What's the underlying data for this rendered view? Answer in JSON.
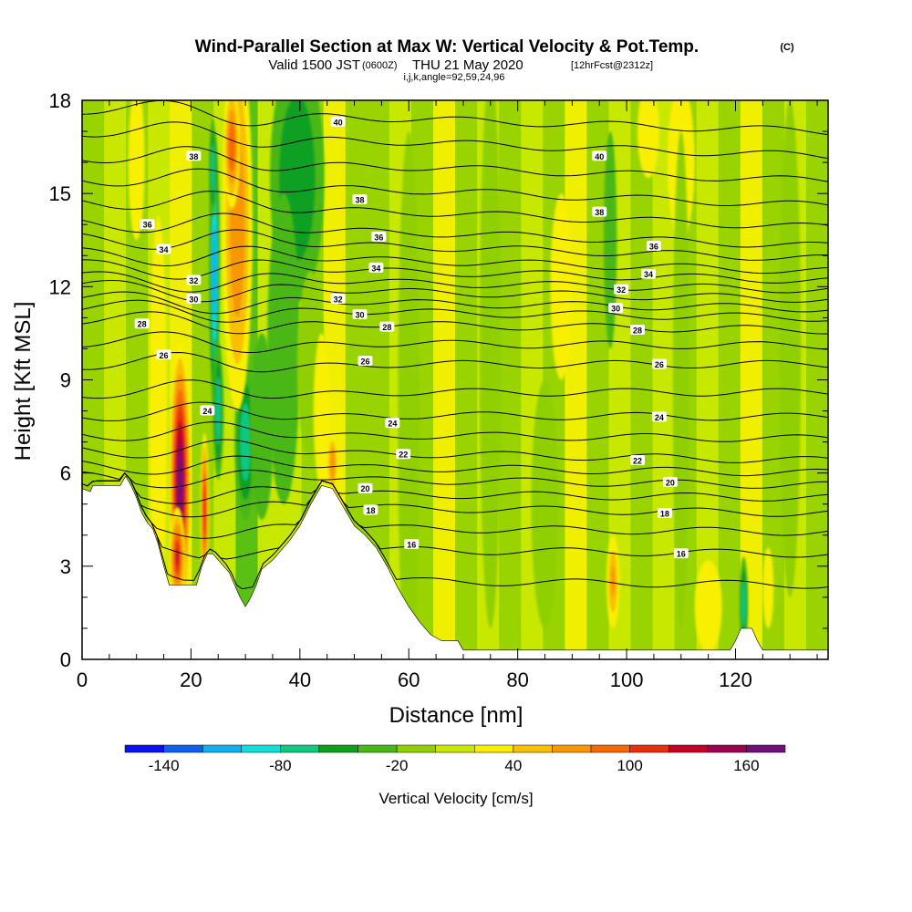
{
  "title": {
    "main": "Wind-Parallel Section at Max W: Vertical Velocity & Pot.Temp.",
    "copyright": "(C)",
    "valid_prefix": "Valid 1500 JST",
    "valid_utc": "(0600Z)",
    "valid_date": "THU 21 May 2020",
    "forecast": "[12hrFcst@2312z]",
    "indices": "i,j,k,angle=92,59,24,96"
  },
  "chart_data": {
    "type": "heatmap",
    "xlabel": "Distance [nm]",
    "ylabel": "Height [Kft MSL]",
    "xlim": [
      0,
      137
    ],
    "ylim": [
      0,
      18
    ],
    "x_ticks": [
      0,
      20,
      40,
      60,
      80,
      100,
      120
    ],
    "y_ticks": [
      0,
      3,
      6,
      9,
      12,
      15,
      18
    ],
    "colorbar": {
      "label": "Vertical Velocity [cm/s]",
      "tick_labels": [
        "-140",
        "-80",
        "-20",
        "40",
        "100",
        "160"
      ],
      "tick_values": [
        -140,
        -80,
        -20,
        40,
        100,
        160
      ],
      "bins": [
        -160,
        -140,
        -120,
        -100,
        -80,
        -60,
        -40,
        -20,
        0,
        20,
        40,
        60,
        80,
        100,
        120,
        140,
        160,
        180
      ],
      "colors": [
        "#0a10f0",
        "#1060f0",
        "#10b0f0",
        "#10e0d8",
        "#10c880",
        "#10a020",
        "#48b818",
        "#90d000",
        "#c8e800",
        "#f8f000",
        "#f8c000",
        "#f89800",
        "#f86800",
        "#e83010",
        "#c80028",
        "#a00050",
        "#701078"
      ]
    },
    "terrain_profile": [
      [
        0,
        5.5
      ],
      [
        1.5,
        5.4
      ],
      [
        2,
        5.6
      ],
      [
        7,
        5.6
      ],
      [
        8,
        5.9
      ],
      [
        9,
        5.6
      ],
      [
        10,
        5.2
      ],
      [
        11,
        4.7
      ],
      [
        12,
        4.4
      ],
      [
        13,
        4.2
      ],
      [
        14,
        3.7
      ],
      [
        15,
        3.0
      ],
      [
        16,
        2.4
      ],
      [
        18,
        2.4
      ],
      [
        19,
        2.4
      ],
      [
        21,
        2.4
      ],
      [
        22,
        3.0
      ],
      [
        23,
        3.4
      ],
      [
        24,
        3.4
      ],
      [
        26,
        3.0
      ],
      [
        27,
        2.8
      ],
      [
        28,
        2.4
      ],
      [
        29,
        2.0
      ],
      [
        30,
        1.7
      ],
      [
        31,
        2.0
      ],
      [
        32,
        2.4
      ],
      [
        33,
        2.9
      ],
      [
        35,
        3.2
      ],
      [
        38,
        3.8
      ],
      [
        40,
        4.3
      ],
      [
        42,
        5.0
      ],
      [
        44,
        5.6
      ],
      [
        46,
        5.5
      ],
      [
        48,
        4.9
      ],
      [
        50,
        4.3
      ],
      [
        52,
        4.0
      ],
      [
        54,
        3.6
      ],
      [
        56,
        3.0
      ],
      [
        58,
        2.3
      ],
      [
        60,
        1.7
      ],
      [
        62,
        1.2
      ],
      [
        64,
        0.8
      ],
      [
        66,
        0.6
      ],
      [
        69,
        0.6
      ],
      [
        70,
        0.3
      ],
      [
        119,
        0.3
      ],
      [
        120,
        0.6
      ],
      [
        121,
        1.0
      ],
      [
        123,
        1.0
      ],
      [
        124,
        0.6
      ],
      [
        125,
        0.3
      ],
      [
        137,
        0.3
      ]
    ],
    "velocity_features": [
      {
        "x": 18,
        "y": 5.7,
        "rx": 2.0,
        "ry": 4.5,
        "value": 170
      },
      {
        "x": 17.5,
        "y": 3.3,
        "rx": 1.5,
        "ry": 1.6,
        "value": 120
      },
      {
        "x": 22.5,
        "y": 4.8,
        "rx": 0.8,
        "ry": 2.5,
        "value": 110
      },
      {
        "x": 24.3,
        "y": 12.5,
        "rx": 1.0,
        "ry": 4.5,
        "value": -120
      },
      {
        "x": 24.0,
        "y": 15.8,
        "rx": 0.7,
        "ry": 1.6,
        "value": -80
      },
      {
        "x": 25.0,
        "y": 8.0,
        "rx": 1.0,
        "ry": 2.2,
        "value": -70
      },
      {
        "x": 30.0,
        "y": 7.0,
        "rx": 2.0,
        "ry": 2.5,
        "value": -80
      },
      {
        "x": 33.0,
        "y": 7.5,
        "rx": 2.2,
        "ry": 3.0,
        "value": -30
      },
      {
        "x": 28.5,
        "y": 14.0,
        "rx": 2.8,
        "ry": 6.0,
        "value": 70
      },
      {
        "x": 27.5,
        "y": 16.5,
        "rx": 1.5,
        "ry": 2.0,
        "value": 90
      },
      {
        "x": 14.0,
        "y": 7.8,
        "rx": 1.6,
        "ry": 6.5,
        "value": 30
      },
      {
        "x": 10.0,
        "y": 16.0,
        "rx": 1.5,
        "ry": 2.5,
        "value": 30
      },
      {
        "x": 39.5,
        "y": 15.5,
        "rx": 5.0,
        "ry": 4.0,
        "value": -50
      },
      {
        "x": 37.0,
        "y": 10.0,
        "rx": 3.0,
        "ry": 5.0,
        "value": -30
      },
      {
        "x": 42.0,
        "y": 9.5,
        "rx": 2.5,
        "ry": 3.0,
        "value": -20
      },
      {
        "x": 44.0,
        "y": 8.0,
        "rx": 1.5,
        "ry": 2.5,
        "value": 35
      },
      {
        "x": 46.0,
        "y": 6.3,
        "rx": 1.0,
        "ry": 1.0,
        "value": 70
      },
      {
        "x": 60.0,
        "y": 8.0,
        "rx": 2.0,
        "ry": 9.0,
        "value": -20
      },
      {
        "x": 75.0,
        "y": 10.0,
        "rx": 2.0,
        "ry": 9.0,
        "value": -20
      },
      {
        "x": 85.0,
        "y": 5.0,
        "rx": 2.5,
        "ry": 4.0,
        "value": -15
      },
      {
        "x": 88.0,
        "y": 12.0,
        "rx": 2.0,
        "ry": 3.0,
        "value": 25
      },
      {
        "x": 97.0,
        "y": 13.5,
        "rx": 1.2,
        "ry": 3.5,
        "value": -40
      },
      {
        "x": 110.0,
        "y": 16.0,
        "rx": 2.5,
        "ry": 2.5,
        "value": 30
      },
      {
        "x": 104.0,
        "y": 17.0,
        "rx": 2.0,
        "ry": 1.5,
        "value": 30
      },
      {
        "x": 97.5,
        "y": 2.5,
        "rx": 1.2,
        "ry": 1.5,
        "value": 60
      },
      {
        "x": 115.0,
        "y": 1.7,
        "rx": 2.5,
        "ry": 1.5,
        "value": 30
      },
      {
        "x": 121.5,
        "y": 1.8,
        "rx": 0.8,
        "ry": 1.5,
        "value": -80
      },
      {
        "x": 126.0,
        "y": 2.3,
        "rx": 1.0,
        "ry": 1.3,
        "value": 30
      },
      {
        "x": 110.0,
        "y": 9.0,
        "rx": 1.5,
        "ry": 8.0,
        "value": -20
      },
      {
        "x": 130.0,
        "y": 10.0,
        "rx": 2.0,
        "ry": 8.0,
        "value": -20
      }
    ],
    "contour_labels": [
      {
        "label": "40",
        "x": 47,
        "y": 17.3
      },
      {
        "label": "40",
        "x": 95,
        "y": 16.2
      },
      {
        "label": "38",
        "x": 20.5,
        "y": 16.2
      },
      {
        "label": "38",
        "x": 51,
        "y": 14.8
      },
      {
        "label": "38",
        "x": 95,
        "y": 14.4
      },
      {
        "label": "36",
        "x": 12,
        "y": 14.0
      },
      {
        "label": "36",
        "x": 54.5,
        "y": 13.6
      },
      {
        "label": "36",
        "x": 105,
        "y": 13.3
      },
      {
        "label": "34",
        "x": 15,
        "y": 13.2
      },
      {
        "label": "34",
        "x": 54,
        "y": 12.6
      },
      {
        "label": "34",
        "x": 104,
        "y": 12.4
      },
      {
        "label": "32",
        "x": 20.5,
        "y": 12.2
      },
      {
        "label": "32",
        "x": 47,
        "y": 11.6
      },
      {
        "label": "32",
        "x": 99,
        "y": 11.9
      },
      {
        "label": "30",
        "x": 20.5,
        "y": 11.6
      },
      {
        "label": "30",
        "x": 51,
        "y": 11.1
      },
      {
        "label": "30",
        "x": 98,
        "y": 11.3
      },
      {
        "label": "28",
        "x": 11,
        "y": 10.8
      },
      {
        "label": "28",
        "x": 56,
        "y": 10.7
      },
      {
        "label": "28",
        "x": 102,
        "y": 10.6
      },
      {
        "label": "26",
        "x": 15,
        "y": 9.8
      },
      {
        "label": "26",
        "x": 52,
        "y": 9.6
      },
      {
        "label": "26",
        "x": 106,
        "y": 9.5
      },
      {
        "label": "24",
        "x": 23,
        "y": 8.0
      },
      {
        "label": "24",
        "x": 57,
        "y": 7.6
      },
      {
        "label": "24",
        "x": 106,
        "y": 7.8
      },
      {
        "label": "22",
        "x": 59,
        "y": 6.6
      },
      {
        "label": "22",
        "x": 102,
        "y": 6.4
      },
      {
        "label": "20",
        "x": 52,
        "y": 5.5
      },
      {
        "label": "20",
        "x": 108,
        "y": 5.7
      },
      {
        "label": "18",
        "x": 53,
        "y": 4.8
      },
      {
        "label": "18",
        "x": 107,
        "y": 4.7
      },
      {
        "label": "16",
        "x": 60.5,
        "y": 3.7
      },
      {
        "label": "16",
        "x": 110,
        "y": 3.4
      }
    ],
    "contour_baselines": [
      {
        "level": 14,
        "start_y": 2.6,
        "end_y": 2.4
      },
      {
        "level": 16,
        "start_y": 3.6,
        "end_y": 3.4
      },
      {
        "level": 17,
        "start_y": 4.3,
        "end_y": 4.1
      },
      {
        "level": 18,
        "start_y": 5.0,
        "end_y": 4.7
      },
      {
        "level": 19,
        "start_y": 5.4,
        "end_y": 5.2
      },
      {
        "level": 20,
        "start_y": 5.9,
        "end_y": 5.6
      },
      {
        "level": 21,
        "start_y": 6.3,
        "end_y": 6.0
      },
      {
        "level": 22,
        "start_y": 6.8,
        "end_y": 6.4
      },
      {
        "level": 23,
        "start_y": 7.3,
        "end_y": 7.1
      },
      {
        "level": 24,
        "start_y": 7.9,
        "end_y": 7.8
      },
      {
        "level": 25,
        "start_y": 8.6,
        "end_y": 8.6
      },
      {
        "level": 26,
        "start_y": 9.5,
        "end_y": 9.5
      },
      {
        "level": 27,
        "start_y": 10.2,
        "end_y": 10.1
      },
      {
        "level": 28,
        "start_y": 10.9,
        "end_y": 10.6
      },
      {
        "level": 29,
        "start_y": 11.3,
        "end_y": 11.0
      },
      {
        "level": 30,
        "start_y": 11.6,
        "end_y": 11.3
      },
      {
        "level": 31,
        "start_y": 12.0,
        "end_y": 11.6
      },
      {
        "level": 32,
        "start_y": 12.3,
        "end_y": 11.9
      },
      {
        "level": 33,
        "start_y": 12.7,
        "end_y": 12.2
      },
      {
        "level": 34,
        "start_y": 13.1,
        "end_y": 12.5
      },
      {
        "level": 35,
        "start_y": 13.6,
        "end_y": 12.9
      },
      {
        "level": 36,
        "start_y": 14.1,
        "end_y": 13.3
      },
      {
        "level": 37,
        "start_y": 14.8,
        "end_y": 13.9
      },
      {
        "level": 38,
        "start_y": 15.5,
        "end_y": 14.6
      },
      {
        "level": 39,
        "start_y": 16.2,
        "end_y": 15.4
      },
      {
        "level": 40,
        "start_y": 17.0,
        "end_y": 16.2
      },
      {
        "level": 41,
        "start_y": 17.7,
        "end_y": 17.0
      }
    ],
    "grid": false
  }
}
